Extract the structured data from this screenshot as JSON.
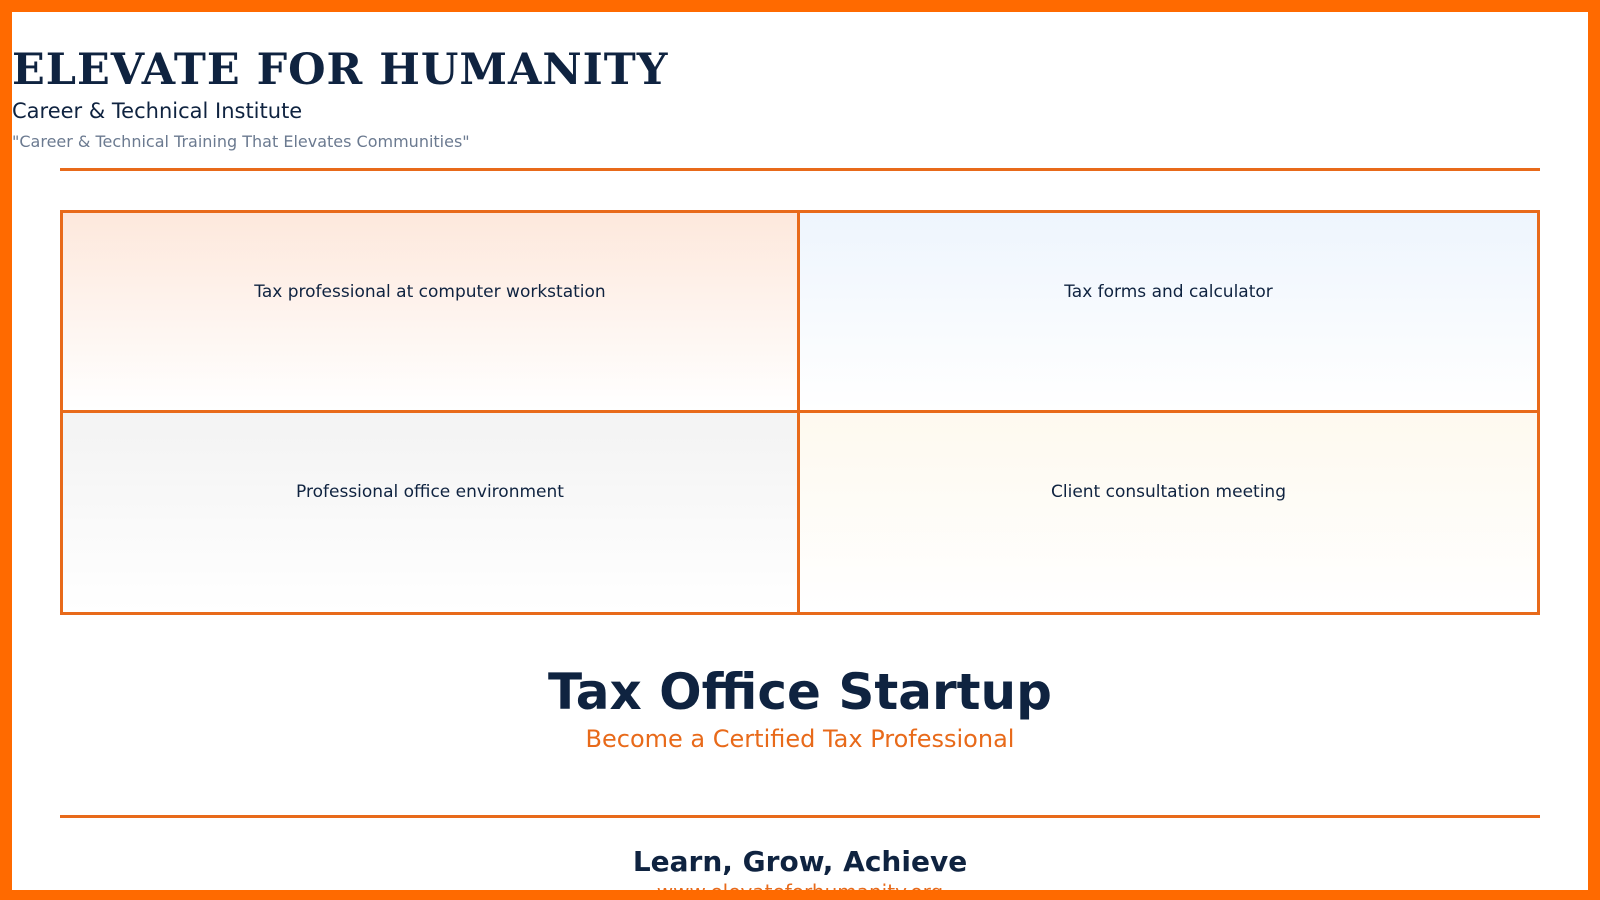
{
  "header": {
    "brand": "ELEVATE FOR HUMANITY",
    "institute": "Career & Technical Institute",
    "tagline": "\"Career & Technical Training That Elevates Communities\""
  },
  "images": [
    {
      "label": "Tax professional at computer workstation"
    },
    {
      "label": "Tax forms and calculator"
    },
    {
      "label": "Professional office environment"
    },
    {
      "label": "Client consultation meeting"
    }
  ],
  "main": {
    "title": "Tax Office Startup",
    "subtitle": "Become a Certified Tax Professional"
  },
  "footer": {
    "motto": "Learn, Grow, Achieve",
    "website": "www.elevateforhumanity.org"
  },
  "colors": {
    "accent": "#ff6a00",
    "navy": "#0f2340"
  }
}
